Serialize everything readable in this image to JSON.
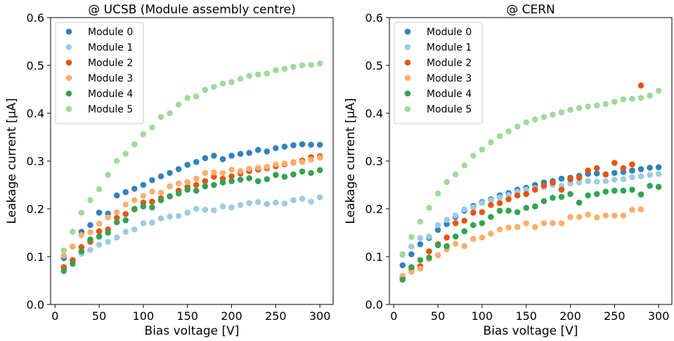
{
  "chart_data": [
    {
      "type": "scatter",
      "title": "@ UCSB (Module assembly centre)",
      "xlabel": "Bias voltage [V]",
      "ylabel": "Leakage current [μA]",
      "xlim": [
        -5,
        315
      ],
      "ylim": [
        0.0,
        0.6
      ],
      "xticks": [
        0,
        50,
        100,
        150,
        200,
        250,
        300
      ],
      "yticks": [
        0.0,
        0.1,
        0.2,
        0.3,
        0.4,
        0.5,
        0.6
      ],
      "ytick_labels": [
        "0.0",
        "0.1",
        "0.2",
        "0.3",
        "0.4",
        "0.5",
        "0.6"
      ],
      "grid": false,
      "legend": "top-left",
      "series": [
        {
          "name": "Module 0",
          "color": "#3182bd",
          "x": [
            10,
            20,
            30,
            40,
            50,
            60,
            70,
            80,
            90,
            100,
            110,
            120,
            130,
            140,
            150,
            160,
            170,
            180,
            190,
            200,
            210,
            220,
            230,
            240,
            250,
            260,
            270,
            280,
            290,
            300
          ],
          "y": [
            0.097,
            0.121,
            0.152,
            0.166,
            0.192,
            0.19,
            0.228,
            0.235,
            0.242,
            0.25,
            0.26,
            0.268,
            0.275,
            0.283,
            0.292,
            0.298,
            0.306,
            0.311,
            0.304,
            0.311,
            0.315,
            0.317,
            0.323,
            0.32,
            0.327,
            0.33,
            0.333,
            0.335,
            0.334,
            0.334
          ]
        },
        {
          "name": "Module 1",
          "color": "#9ecae1",
          "x": [
            10,
            20,
            30,
            40,
            50,
            60,
            70,
            80,
            90,
            100,
            110,
            120,
            130,
            140,
            150,
            160,
            170,
            180,
            190,
            200,
            210,
            220,
            230,
            240,
            250,
            260,
            270,
            280,
            290,
            300
          ],
          "y": [
            0.076,
            0.094,
            0.106,
            0.114,
            0.125,
            0.131,
            0.14,
            0.152,
            0.157,
            0.17,
            0.171,
            0.18,
            0.184,
            0.185,
            0.192,
            0.2,
            0.198,
            0.197,
            0.205,
            0.203,
            0.208,
            0.212,
            0.214,
            0.21,
            0.213,
            0.211,
            0.218,
            0.221,
            0.215,
            0.224
          ]
        },
        {
          "name": "Module 2",
          "color": "#e6550d",
          "x": [
            10,
            20,
            30,
            40,
            50,
            60,
            70,
            80,
            90,
            100,
            110,
            120,
            130,
            140,
            150,
            160,
            170,
            180,
            190,
            200,
            210,
            220,
            230,
            240,
            250,
            260,
            270,
            280,
            290,
            300
          ],
          "y": [
            0.078,
            0.092,
            0.12,
            0.131,
            0.153,
            0.157,
            0.181,
            0.189,
            0.199,
            0.213,
            0.215,
            0.222,
            0.226,
            0.238,
            0.246,
            0.25,
            0.258,
            0.267,
            0.263,
            0.268,
            0.274,
            0.279,
            0.282,
            0.285,
            0.289,
            0.293,
            0.297,
            0.301,
            0.308,
            0.31
          ]
        },
        {
          "name": "Module 3",
          "color": "#fdae6b",
          "x": [
            10,
            20,
            30,
            40,
            50,
            60,
            70,
            80,
            90,
            100,
            110,
            120,
            130,
            140,
            150,
            160,
            170,
            180,
            190,
            200,
            210,
            220,
            230,
            240,
            250,
            260,
            270,
            280,
            290,
            300
          ],
          "y": [
            0.102,
            0.121,
            0.145,
            0.151,
            0.169,
            0.182,
            0.193,
            0.209,
            0.218,
            0.227,
            0.236,
            0.234,
            0.247,
            0.253,
            0.256,
            0.263,
            0.275,
            0.276,
            0.275,
            0.282,
            0.279,
            0.284,
            0.286,
            0.288,
            0.293,
            0.295,
            0.296,
            0.298,
            0.303,
            0.307
          ]
        },
        {
          "name": "Module 4",
          "color": "#31a354",
          "x": [
            10,
            20,
            30,
            40,
            50,
            60,
            70,
            80,
            90,
            100,
            110,
            120,
            130,
            140,
            150,
            160,
            170,
            180,
            190,
            200,
            210,
            220,
            230,
            240,
            250,
            260,
            270,
            280,
            290,
            300
          ],
          "y": [
            0.07,
            0.085,
            0.111,
            0.136,
            0.142,
            0.15,
            0.172,
            0.176,
            0.2,
            0.205,
            0.203,
            0.218,
            0.226,
            0.232,
            0.24,
            0.238,
            0.247,
            0.25,
            0.255,
            0.258,
            0.261,
            0.264,
            0.258,
            0.262,
            0.271,
            0.267,
            0.272,
            0.278,
            0.275,
            0.281
          ]
        },
        {
          "name": "Module 5",
          "color": "#a1d99b",
          "x": [
            10,
            20,
            30,
            40,
            50,
            60,
            70,
            80,
            90,
            100,
            110,
            120,
            130,
            140,
            150,
            160,
            170,
            180,
            190,
            200,
            210,
            220,
            230,
            240,
            250,
            260,
            270,
            280,
            290,
            300
          ],
          "y": [
            0.113,
            0.152,
            0.192,
            0.218,
            0.241,
            0.271,
            0.3,
            0.315,
            0.335,
            0.356,
            0.37,
            0.392,
            0.4,
            0.418,
            0.432,
            0.435,
            0.449,
            0.455,
            0.462,
            0.465,
            0.472,
            0.478,
            0.481,
            0.483,
            0.49,
            0.493,
            0.497,
            0.5,
            0.501,
            0.504
          ]
        }
      ]
    },
    {
      "type": "scatter",
      "title": "@ CERN",
      "xlabel": "Bias voltage [V]",
      "ylabel": "Leakage current [μA]",
      "xlim": [
        -5,
        315
      ],
      "ylim": [
        0.0,
        0.6
      ],
      "xticks": [
        0,
        50,
        100,
        150,
        200,
        250,
        300
      ],
      "yticks": [
        0.0,
        0.1,
        0.2,
        0.3,
        0.4,
        0.5,
        0.6
      ],
      "ytick_labels": [
        "0.0",
        "0.1",
        "0.2",
        "0.3",
        "0.4",
        "0.5",
        "0.6"
      ],
      "grid": false,
      "legend": "top-left",
      "series": [
        {
          "name": "Module 0",
          "color": "#3182bd",
          "x": [
            10,
            20,
            30,
            40,
            50,
            60,
            70,
            80,
            90,
            100,
            110,
            120,
            130,
            140,
            150,
            160,
            170,
            180,
            190,
            200,
            210,
            220,
            230,
            240,
            250,
            260,
            270,
            280,
            290,
            300
          ],
          "y": [
            0.082,
            0.105,
            0.126,
            0.139,
            0.156,
            0.168,
            0.183,
            0.196,
            0.206,
            0.214,
            0.22,
            0.228,
            0.233,
            0.24,
            0.244,
            0.25,
            0.255,
            0.258,
            0.263,
            0.265,
            0.269,
            0.273,
            0.274,
            0.272,
            0.275,
            0.277,
            0.28,
            0.283,
            0.286,
            0.287
          ]
        },
        {
          "name": "Module 1",
          "color": "#9ecae1",
          "x": [
            10,
            20,
            30,
            40,
            50,
            60,
            70,
            80,
            90,
            100,
            110,
            120,
            130,
            140,
            150,
            160,
            170,
            180,
            190,
            200,
            210,
            220,
            230,
            240,
            250,
            260,
            270,
            280,
            290,
            300
          ],
          "y": [
            0.105,
            0.121,
            0.139,
            0.142,
            0.166,
            0.177,
            0.186,
            0.199,
            0.203,
            0.212,
            0.218,
            0.224,
            0.229,
            0.236,
            0.24,
            0.243,
            0.245,
            0.25,
            0.248,
            0.253,
            0.255,
            0.258,
            0.257,
            0.258,
            0.261,
            0.262,
            0.266,
            0.268,
            0.271,
            0.273
          ]
        },
        {
          "name": "Module 2",
          "color": "#e6550d",
          "x": [
            10,
            20,
            30,
            40,
            50,
            60,
            70,
            80,
            90,
            100,
            110,
            120,
            130,
            140,
            150,
            160,
            170,
            180,
            190,
            200,
            210,
            220,
            230,
            240,
            250,
            260,
            270,
            280
          ],
          "y": [
            0.056,
            0.073,
            0.08,
            0.111,
            0.126,
            0.14,
            0.17,
            0.175,
            0.192,
            0.193,
            0.208,
            0.212,
            0.22,
            0.228,
            0.231,
            0.24,
            0.249,
            0.255,
            0.24,
            0.262,
            0.265,
            0.28,
            0.285,
            0.272,
            0.296,
            0.285,
            0.293,
            0.458
          ]
        },
        {
          "name": "Module 3",
          "color": "#fdae6b",
          "x": [
            10,
            20,
            30,
            40,
            50,
            60,
            70,
            80,
            90,
            100,
            110,
            120,
            130,
            140,
            150,
            160,
            170,
            180,
            190,
            200,
            210,
            220,
            230,
            240,
            250,
            260,
            270,
            280
          ],
          "y": [
            0.06,
            0.068,
            0.075,
            0.095,
            0.103,
            0.115,
            0.127,
            0.122,
            0.137,
            0.14,
            0.148,
            0.157,
            0.161,
            0.162,
            0.17,
            0.162,
            0.17,
            0.17,
            0.17,
            0.183,
            0.183,
            0.188,
            0.182,
            0.186,
            0.186,
            0.186,
            0.198,
            0.199
          ]
        },
        {
          "name": "Module 4",
          "color": "#31a354",
          "x": [
            10,
            20,
            30,
            40,
            50,
            60,
            70,
            80,
            90,
            100,
            110,
            120,
            130,
            140,
            150,
            160,
            170,
            180,
            190,
            200,
            210,
            220,
            230,
            240,
            250,
            260,
            270,
            280,
            290,
            300
          ],
          "y": [
            0.052,
            0.078,
            0.093,
            0.098,
            0.124,
            0.122,
            0.142,
            0.153,
            0.166,
            0.17,
            0.183,
            0.196,
            0.196,
            0.193,
            0.202,
            0.205,
            0.216,
            0.223,
            0.225,
            0.231,
            0.213,
            0.228,
            0.231,
            0.236,
            0.238,
            0.238,
            0.24,
            0.23,
            0.248,
            0.246
          ]
        },
        {
          "name": "Module 5",
          "color": "#a1d99b",
          "x": [
            10,
            20,
            30,
            40,
            50,
            60,
            70,
            80,
            90,
            100,
            110,
            120,
            130,
            140,
            150,
            160,
            170,
            180,
            190,
            200,
            210,
            220,
            230,
            240,
            250,
            260,
            270,
            280,
            290,
            300
          ],
          "y": [
            0.104,
            0.141,
            0.173,
            0.202,
            0.232,
            0.256,
            0.272,
            0.291,
            0.311,
            0.324,
            0.339,
            0.352,
            0.362,
            0.372,
            0.381,
            0.387,
            0.392,
            0.397,
            0.402,
            0.407,
            0.411,
            0.414,
            0.416,
            0.419,
            0.424,
            0.429,
            0.43,
            0.432,
            0.437,
            0.447
          ]
        }
      ]
    }
  ]
}
